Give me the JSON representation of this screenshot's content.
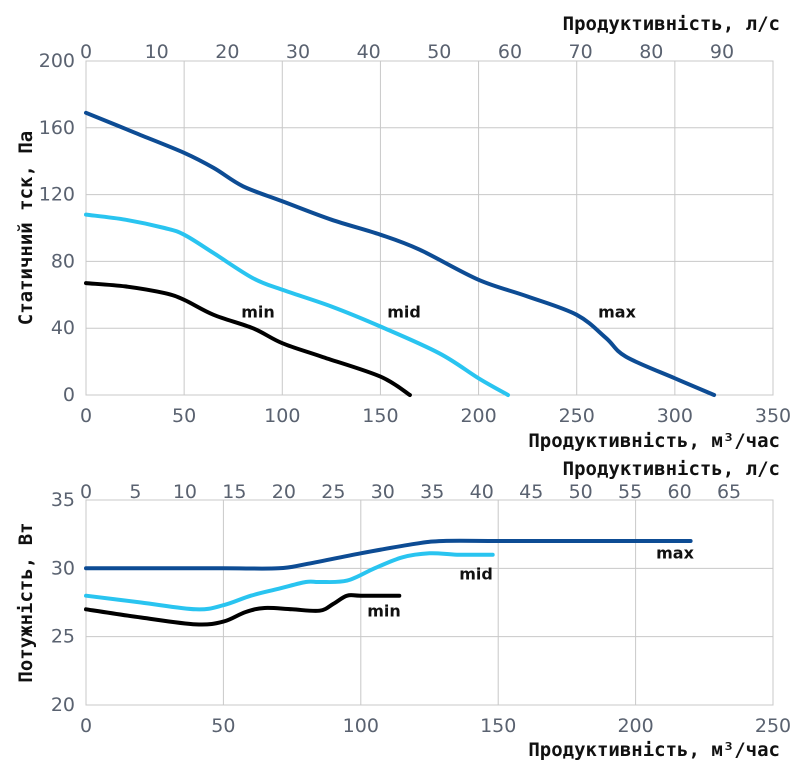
{
  "colors": {
    "min": "#000000",
    "mid": "#29c4f0",
    "max": "#0d4c94",
    "grid": "#c8c8c8",
    "tick_text": "#5a6270"
  },
  "chart_data": [
    {
      "type": "line",
      "title": "",
      "xlabel": "Продуктивність, м³/час",
      "x2label": "Продуктивність, л/с",
      "ylabel": "Статичний тск, Па",
      "xlim": [
        0,
        350
      ],
      "x2lim": [
        0,
        97.22
      ],
      "ylim": [
        0,
        200
      ],
      "xticks": [
        0,
        50,
        100,
        150,
        200,
        250,
        300,
        350
      ],
      "x2ticks": [
        0,
        10,
        20,
        30,
        40,
        50,
        60,
        70,
        80,
        90
      ],
      "yticks": [
        0,
        40,
        80,
        120,
        160,
        200
      ],
      "grid": true,
      "series": [
        {
          "name": "min",
          "color": "#000000",
          "x": [
            0,
            20,
            40,
            50,
            65,
            85,
            100,
            120,
            150,
            165
          ],
          "y": [
            67,
            65,
            61,
            57,
            48,
            40,
            31,
            23,
            11,
            0
          ]
        },
        {
          "name": "mid",
          "color": "#29c4f0",
          "x": [
            0,
            20,
            40,
            50,
            65,
            85,
            100,
            125,
            150,
            180,
            200,
            215
          ],
          "y": [
            108,
            105,
            100,
            96,
            85,
            70,
            63,
            53,
            41,
            25,
            10,
            0
          ]
        },
        {
          "name": "max",
          "color": "#0d4c94",
          "x": [
            0,
            25,
            50,
            65,
            80,
            100,
            125,
            150,
            170,
            200,
            225,
            250,
            265,
            275,
            300,
            320
          ],
          "y": [
            169,
            157,
            145,
            136,
            125,
            116,
            105,
            96,
            87,
            69,
            59,
            48,
            34,
            23,
            10,
            0
          ]
        }
      ]
    },
    {
      "type": "line",
      "title": "",
      "xlabel": "Продуктивність, м³/час",
      "x2label": "Продуктивність, л/с",
      "ylabel": "Потужність, Вт",
      "xlim": [
        0,
        250
      ],
      "x2lim": [
        0,
        69.44
      ],
      "ylim": [
        20,
        35
      ],
      "xticks": [
        0,
        50,
        100,
        150,
        200,
        250
      ],
      "x2ticks": [
        0,
        5,
        10,
        15,
        20,
        25,
        30,
        35,
        40,
        45,
        50,
        55,
        60,
        65
      ],
      "yticks": [
        20,
        25,
        30,
        35
      ],
      "grid": true,
      "series": [
        {
          "name": "min",
          "color": "#000000",
          "x": [
            0,
            20,
            40,
            50,
            58,
            65,
            75,
            85,
            90,
            95,
            100,
            114
          ],
          "y": [
            27,
            26.4,
            25.9,
            26.1,
            26.8,
            27.1,
            27.0,
            26.9,
            27.4,
            28.0,
            28.0,
            28.0
          ]
        },
        {
          "name": "mid",
          "color": "#29c4f0",
          "x": [
            0,
            20,
            40,
            50,
            60,
            70,
            80,
            85,
            95,
            105,
            115,
            125,
            135,
            148
          ],
          "y": [
            28,
            27.5,
            27.0,
            27.3,
            28.0,
            28.5,
            29.0,
            29.0,
            29.1,
            30.0,
            30.8,
            31.1,
            31.0,
            31.0
          ]
        },
        {
          "name": "max",
          "color": "#0d4c94",
          "x": [
            0,
            20,
            50,
            70,
            80,
            100,
            120,
            130,
            150,
            180,
            220
          ],
          "y": [
            30,
            30,
            30,
            30,
            30.3,
            31.1,
            31.8,
            32.0,
            32.0,
            32.0,
            32.0
          ]
        }
      ]
    }
  ]
}
